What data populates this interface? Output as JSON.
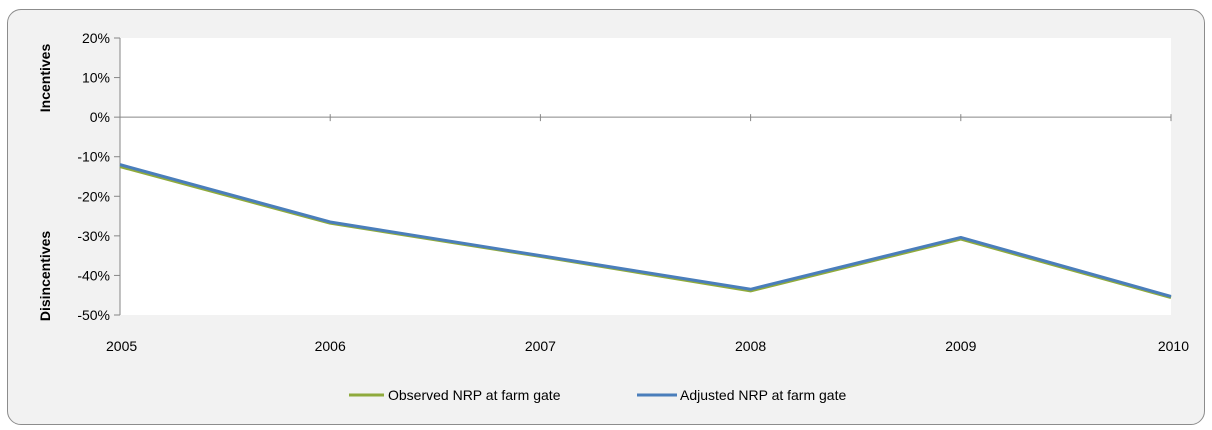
{
  "chart_data": {
    "type": "line",
    "title": "",
    "xlabel": "",
    "ylabel": "",
    "side_labels": {
      "upper": "Incentives",
      "lower": "Disincentives"
    },
    "x": [
      "2005",
      "2006",
      "2007",
      "2008",
      "2009",
      "2010"
    ],
    "ylim": [
      -50,
      20
    ],
    "yticks": [
      20,
      10,
      0,
      -10,
      -20,
      -30,
      -40,
      -50
    ],
    "ytick_labels": [
      "20%",
      "10%",
      "0%",
      "-10%",
      "-20%",
      "-30%",
      "-40%",
      "-50%"
    ],
    "series": [
      {
        "name": "Observed NRP at farm gate",
        "color": "#8faa3c",
        "values": [
          -12.5,
          -26.8,
          -35.2,
          -43.9,
          -30.8,
          -45.6
        ]
      },
      {
        "name": "Adjusted NRP at farm gate",
        "color": "#4a7ebb",
        "values": [
          -12.0,
          -26.5,
          -35.0,
          -43.5,
          -30.4,
          -45.3
        ]
      }
    ],
    "grid": false,
    "legend_position": "bottom"
  }
}
